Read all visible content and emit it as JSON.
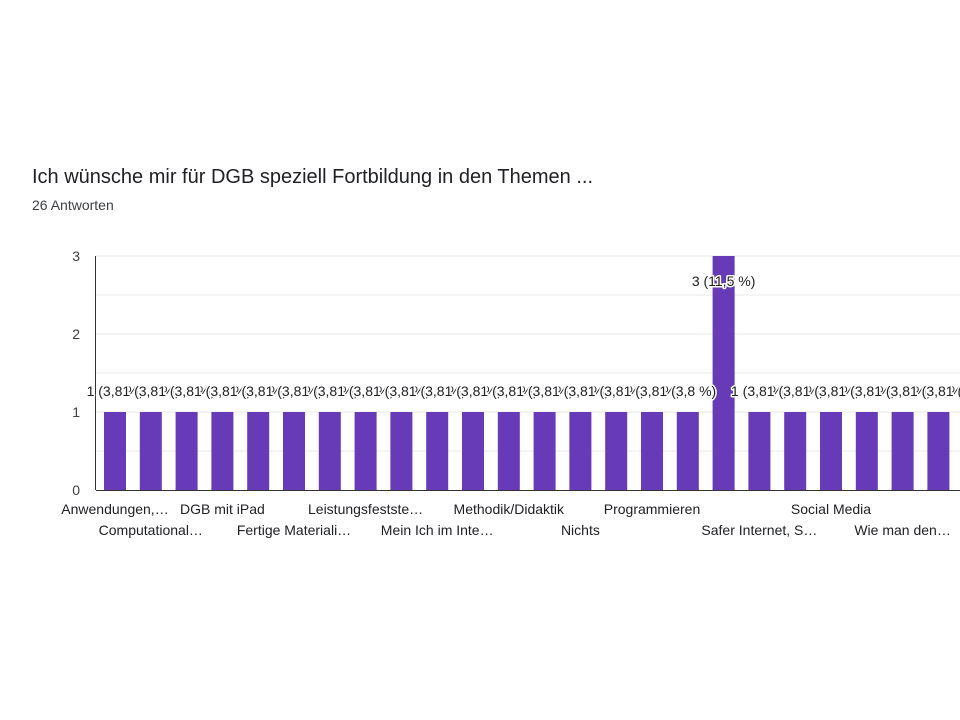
{
  "title": "Ich wünsche mir für DGB speziell Fortbildung in den Themen ...",
  "subtitle": "26 Antworten",
  "chart_data": {
    "type": "bar",
    "categories": [
      "Anwendungen,…",
      "Computational…",
      "",
      "DGB mit iPad",
      "",
      "Fertige Materiali…",
      "",
      "Leistungsfestste…",
      "",
      "Mein Ich im Inte…",
      "",
      "Methodik/Didaktik",
      "",
      "Nichts",
      "",
      "Programmieren",
      "",
      "",
      "Safer Internet, S…",
      "",
      "Social Media",
      "",
      "Wie man den…",
      "",
      ""
    ],
    "values": [
      1,
      1,
      1,
      1,
      1,
      1,
      1,
      1,
      1,
      1,
      1,
      1,
      1,
      1,
      1,
      1,
      1,
      3,
      1,
      1,
      1,
      1,
      1,
      1,
      1
    ],
    "data_labels": [
      "1 (3,8 %)",
      "1 (3,8 %)",
      "1 (3,8 %)",
      "1 (3,8 %)",
      "1 (3,8 %)",
      "1 (3,8 %)",
      "1 (3,8 %)",
      "1 (3,8 %)",
      "1 (3,8 %)",
      "1 (3,8 %)",
      "1 (3,8 %)",
      "1 (3,8 %)",
      "1 (3,8 %)",
      "1 (3,8 %)",
      "1 (3,8 %)",
      "1 (3,8 %)",
      "1 (3,8 %)",
      "3 (11,5 %)",
      "1 (3,8 %)",
      "1 (3,8 %)",
      "1 (3,8 %)",
      "1 (3,8 %)",
      "1 (3,8 %)",
      "1 (3,8 %)",
      "1 (3,8 %)"
    ],
    "yticks": [
      0,
      1,
      2,
      3
    ],
    "ylim": [
      0,
      3
    ],
    "grid": true,
    "bar_color": "#673ab7",
    "grid_color": "#e8e8e8",
    "axis_color": "#333333"
  }
}
